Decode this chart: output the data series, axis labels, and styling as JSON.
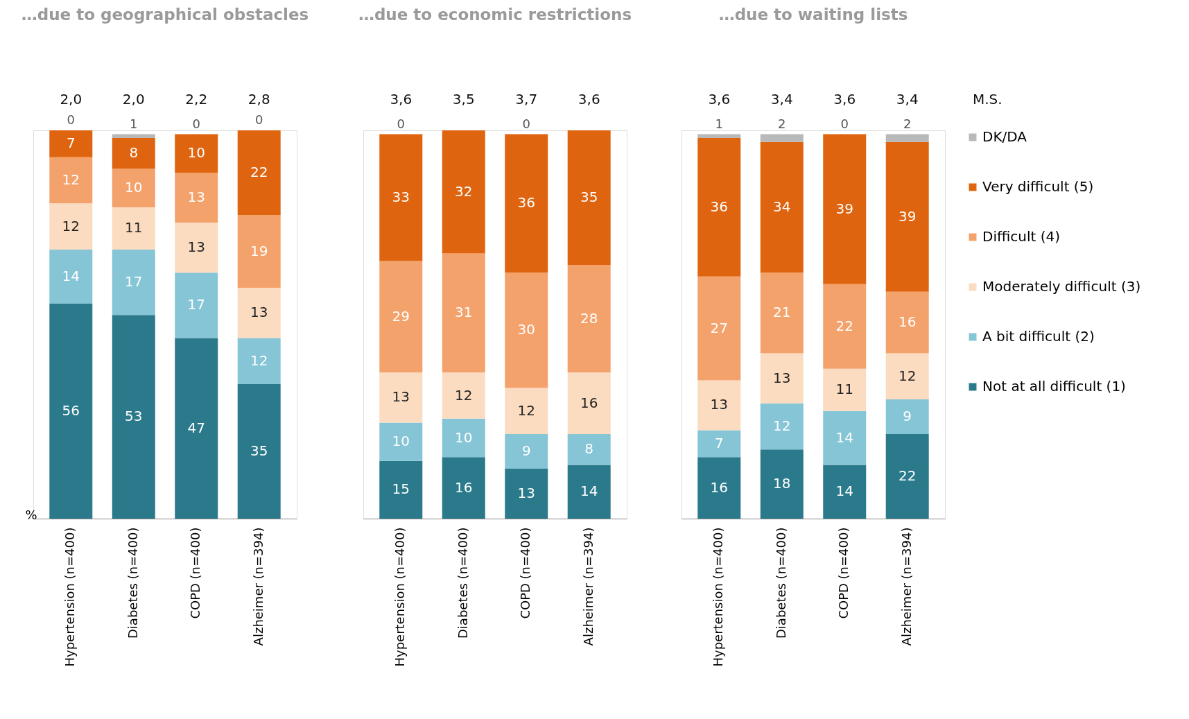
{
  "chart_data": [
    {
      "type": "bar",
      "title": "…due to geographical obstacles",
      "ylabel": "%",
      "stacked": true,
      "data_labels": true,
      "ylim": [
        0,
        101
      ],
      "tick_labels": "x",
      "grid": false,
      "categories": [
        "Hypertension (n=400)",
        "Diabetes (n=400)",
        "COPD (n=400)",
        "Alzheimer (n=394)"
      ],
      "series": [
        {
          "color": "#2b7a8c",
          "values": [
            56,
            53,
            47,
            35
          ]
        },
        {
          "color": "#86c5d6",
          "values": [
            14,
            17,
            17,
            12
          ]
        },
        {
          "color": "#fcdcc0",
          "values": [
            12,
            11,
            13,
            13
          ]
        },
        {
          "color": "#f4a26c",
          "values": [
            12,
            10,
            13,
            19
          ]
        },
        {
          "color": "#df640f",
          "values": [
            7,
            8,
            10,
            22
          ]
        },
        {
          "color": "#b9b9b9",
          "values": [
            0,
            1,
            0,
            0
          ]
        }
      ],
      "annotations": [
        "2,0",
        "2,0",
        "2,2",
        "2,8"
      ]
    },
    {
      "type": "bar",
      "title": "…due to economic restrictions",
      "stacked": true,
      "data_labels": true,
      "ylim": [
        0,
        101
      ],
      "tick_labels": "x",
      "grid": false,
      "categories": [
        "Hypertension (n=400)",
        "Diabetes (n=400)",
        "COPD (n=400)",
        "Alzheimer (n=394)"
      ],
      "series": [
        {
          "color": "#2b7a8c",
          "values": [
            15,
            16,
            13,
            14
          ]
        },
        {
          "color": "#86c5d6",
          "values": [
            10,
            10,
            9,
            8
          ]
        },
        {
          "color": "#fcdcc0",
          "values": [
            13,
            12,
            12,
            16
          ]
        },
        {
          "color": "#f4a26c",
          "values": [
            29,
            31,
            30,
            28
          ]
        },
        {
          "color": "#df640f",
          "values": [
            33,
            32,
            36,
            35
          ]
        },
        {
          "color": "#b9b9b9",
          "values": [
            0,
            null,
            0,
            null
          ]
        }
      ],
      "annotations": [
        "3,6",
        "3,5",
        "3,7",
        "3,6"
      ]
    },
    {
      "type": "bar",
      "title": "…due to waiting lists",
      "stacked": true,
      "data_labels": true,
      "ylim": [
        0,
        101
      ],
      "tick_labels": "x",
      "grid": false,
      "legend": "right",
      "categories": [
        "Hypertension (n=400)",
        "Diabetes (n=400)",
        "COPD (n=400)",
        "Alzheimer (n=394)"
      ],
      "series": [
        {
          "name": "Not at all difficult (1)",
          "color": "#2b7a8c",
          "values": [
            16,
            18,
            14,
            22
          ]
        },
        {
          "name": "A bit difficult (2)",
          "color": "#86c5d6",
          "values": [
            7,
            12,
            14,
            9
          ]
        },
        {
          "name": "Moderately difficult (3)",
          "color": "#fcdcc0",
          "values": [
            13,
            13,
            11,
            12
          ]
        },
        {
          "name": "Difficult (4)",
          "color": "#f4a26c",
          "values": [
            27,
            21,
            22,
            16
          ]
        },
        {
          "name": "Very difficult (5)",
          "color": "#df640f",
          "values": [
            36,
            34,
            39,
            39
          ]
        },
        {
          "name": "DK/DA",
          "color": "#b9b9b9",
          "values": [
            1,
            2,
            0,
            2
          ]
        }
      ],
      "annotations": [
        "3,6",
        "3,4",
        "3,6",
        "3,4",
        "M.S."
      ]
    }
  ]
}
